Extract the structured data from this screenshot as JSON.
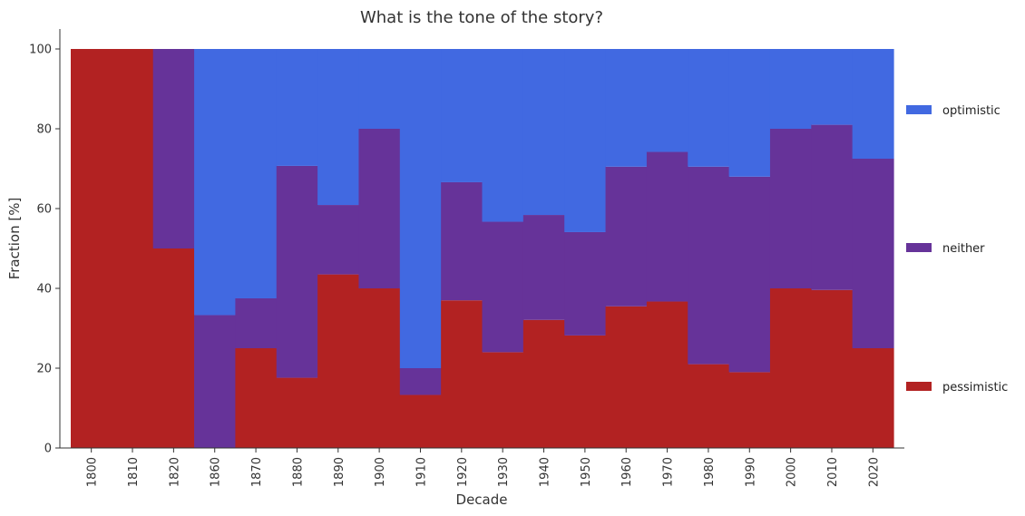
{
  "chart_data": {
    "type": "area",
    "stacked": true,
    "step": true,
    "title": "What is the tone of the story?",
    "xlabel": "Decade",
    "ylabel": "Fraction [%]",
    "ylim": [
      0,
      100
    ],
    "yticks": [
      "0",
      "20",
      "40",
      "60",
      "80",
      "100"
    ],
    "grid": false,
    "legend_position": "right",
    "categories": [
      "1800",
      "1810",
      "1820",
      "1860",
      "1870",
      "1880",
      "1890",
      "1900",
      "1910",
      "1920",
      "1930",
      "1940",
      "1950",
      "1960",
      "1970",
      "1980",
      "1990",
      "2000",
      "2010",
      "2020"
    ],
    "series": [
      {
        "name": "pessimistic",
        "color": "#b22222",
        "values": [
          100,
          100,
          50,
          0,
          25,
          17.6,
          43.5,
          40,
          13.3,
          37,
          24,
          32.1,
          28.2,
          35.5,
          36.7,
          21,
          19,
          40,
          39.6,
          25
        ]
      },
      {
        "name": "neither",
        "color": "#663399",
        "values": [
          0,
          0,
          50,
          33.3,
          12.5,
          53.1,
          17.4,
          40,
          6.7,
          29.6,
          32.7,
          26.3,
          25.9,
          35,
          37.5,
          49.5,
          49,
          40,
          41.4,
          47.5
        ]
      },
      {
        "name": "optimistic",
        "color": "#4169e1",
        "values": [
          0,
          0,
          0,
          66.7,
          62.5,
          29.3,
          39.1,
          20,
          80,
          33.4,
          43.3,
          41.6,
          45.9,
          29.5,
          25.8,
          29.5,
          32,
          20,
          19,
          27.5
        ]
      }
    ],
    "legend": [
      "optimistic",
      "neither",
      "pessimistic"
    ]
  }
}
